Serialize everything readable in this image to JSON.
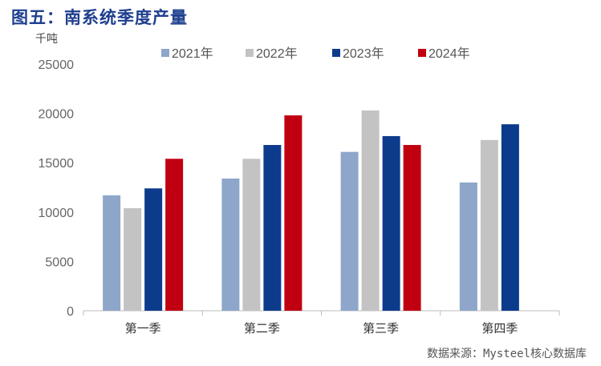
{
  "title": "图五：南系统季度产量",
  "unit_label": "千吨",
  "source": "数据来源：Mysteel核心数据库",
  "chart_data": {
    "type": "bar",
    "title": "图五：南系统季度产量",
    "xlabel": "",
    "ylabel": "千吨",
    "ylim": [
      0,
      25000
    ],
    "yticks": [
      0,
      5000,
      10000,
      15000,
      20000,
      25000
    ],
    "categories": [
      "第一季",
      "第二季",
      "第三季",
      "第四季"
    ],
    "legend_position": "top",
    "grid": false,
    "series": [
      {
        "name": "2021年",
        "color": "#8ea6c9",
        "values": [
          11700,
          13400,
          16100,
          13000
        ]
      },
      {
        "name": "2022年",
        "color": "#c3c3c3",
        "values": [
          10400,
          15400,
          20300,
          17300
        ]
      },
      {
        "name": "2023年",
        "color": "#0d3b8c",
        "values": [
          12400,
          16800,
          17700,
          18900
        ]
      },
      {
        "name": "2024年",
        "color": "#c00010",
        "values": [
          15400,
          19800,
          16800,
          null
        ]
      }
    ]
  }
}
